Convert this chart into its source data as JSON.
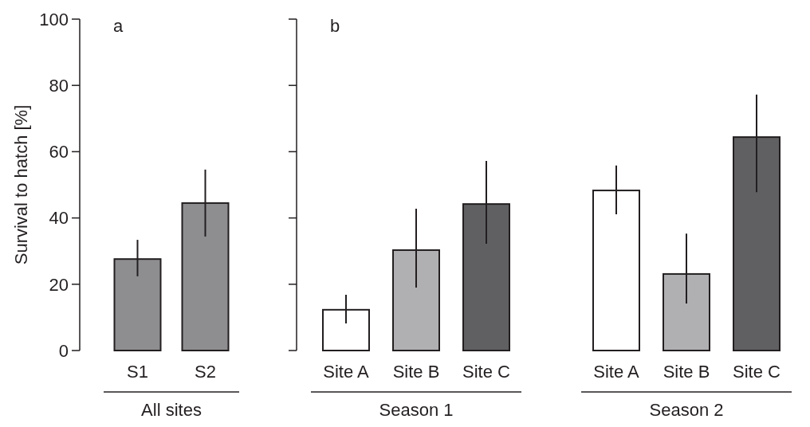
{
  "chart_data": [
    {
      "type": "bar",
      "title": "a",
      "ylabel": "Survival to hatch [%]",
      "categories": [
        "S1",
        "S2"
      ],
      "values": [
        27.6,
        44.5
      ],
      "colors": [
        "#8e8e90",
        "#8e8e90"
      ],
      "errors": [
        [
          22.4,
          33.4
        ],
        [
          34.4,
          54.6
        ]
      ],
      "ylim": [
        0,
        100
      ],
      "yticks": [
        0,
        20,
        40,
        60,
        80,
        100
      ],
      "annotations": [
        "All sites"
      ],
      "grid": false
    },
    {
      "type": "bar",
      "title": "b",
      "categories": [
        "Site A",
        "Site B",
        "Site C",
        "Site A",
        "Site B",
        "Site C"
      ],
      "values": [
        12.3,
        30.3,
        44.2,
        48.3,
        23.1,
        64.4
      ],
      "colors": [
        "#ffffff",
        "#b0b0b2",
        "#606062",
        "#ffffff",
        "#b0b0b2",
        "#606062"
      ],
      "errors": [
        [
          8.2,
          16.8
        ],
        [
          19,
          42.8
        ],
        [
          32.2,
          57.2
        ],
        [
          41.1,
          55.8
        ],
        [
          14.2,
          35.3
        ],
        [
          47.8,
          77.2
        ]
      ],
      "ylim": [
        0,
        100
      ],
      "yticks": [
        0,
        20,
        40,
        60,
        80,
        100
      ],
      "tick_labels": "x",
      "annotations": [
        "Season 1",
        "Season 2"
      ],
      "grid": false
    }
  ]
}
